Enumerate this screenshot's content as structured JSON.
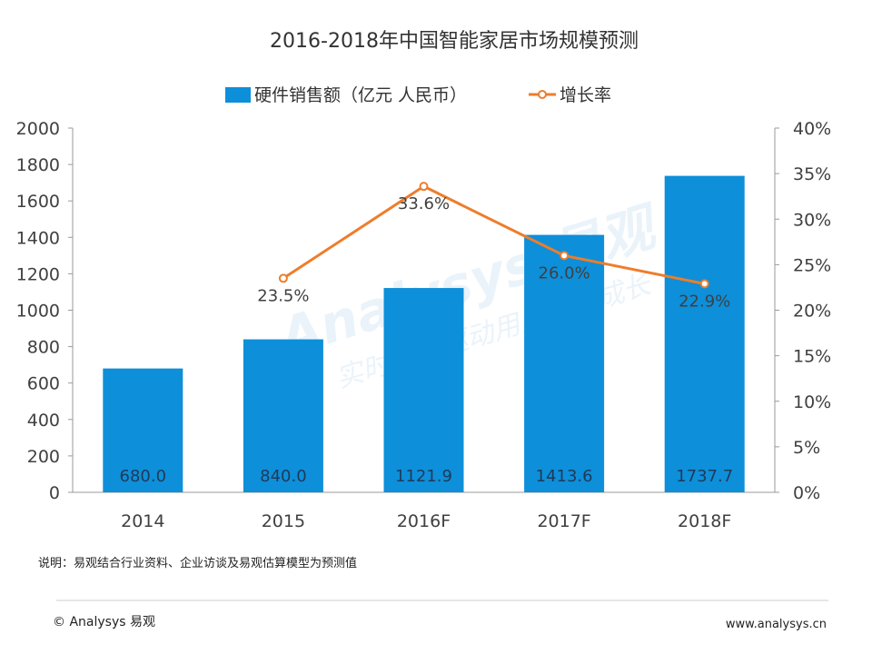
{
  "chart_data": {
    "type": "bar",
    "title": "2016-2018年中国智能家居市场规模预测",
    "categories": [
      "2014",
      "2015",
      "2016F",
      "2017F",
      "2018F"
    ],
    "series": [
      {
        "name": "硬件销售额（亿元 人民币）",
        "type": "bar",
        "axis": "left",
        "values": [
          680.0,
          840.0,
          1121.9,
          1413.6,
          1737.7
        ],
        "labels": [
          "680.0",
          "840.0",
          "1121.9",
          "1413.6",
          "1737.7"
        ],
        "color": "#0e8fd9"
      },
      {
        "name": "增长率",
        "type": "line",
        "axis": "right",
        "values": [
          null,
          23.5,
          33.6,
          26.0,
          22.9
        ],
        "labels": [
          "",
          "23.5%",
          "33.6%",
          "26.0%",
          "22.9%"
        ],
        "color": "#ee7d2b"
      }
    ],
    "y_left": {
      "lim": [
        0,
        2000
      ],
      "ticks": [
        "0",
        "200",
        "400",
        "600",
        "800",
        "1000",
        "1200",
        "1400",
        "1600",
        "1800",
        "2000"
      ]
    },
    "y_right": {
      "lim": [
        0,
        40
      ],
      "ticks": [
        "0%",
        "5%",
        "10%",
        "15%",
        "20%",
        "25%",
        "30%",
        "35%",
        "40%"
      ]
    },
    "grid": false,
    "legend_position": "top-center"
  },
  "note": "说明：易观结合行业资料、企业访谈及易观估算模型为预测值",
  "footer": {
    "left": "© Analysys 易观",
    "right": "www.analysys.cn"
  },
  "watermark": {
    "main": "Analysys 易观",
    "sub": "实时分析驱动用户资产成长"
  }
}
